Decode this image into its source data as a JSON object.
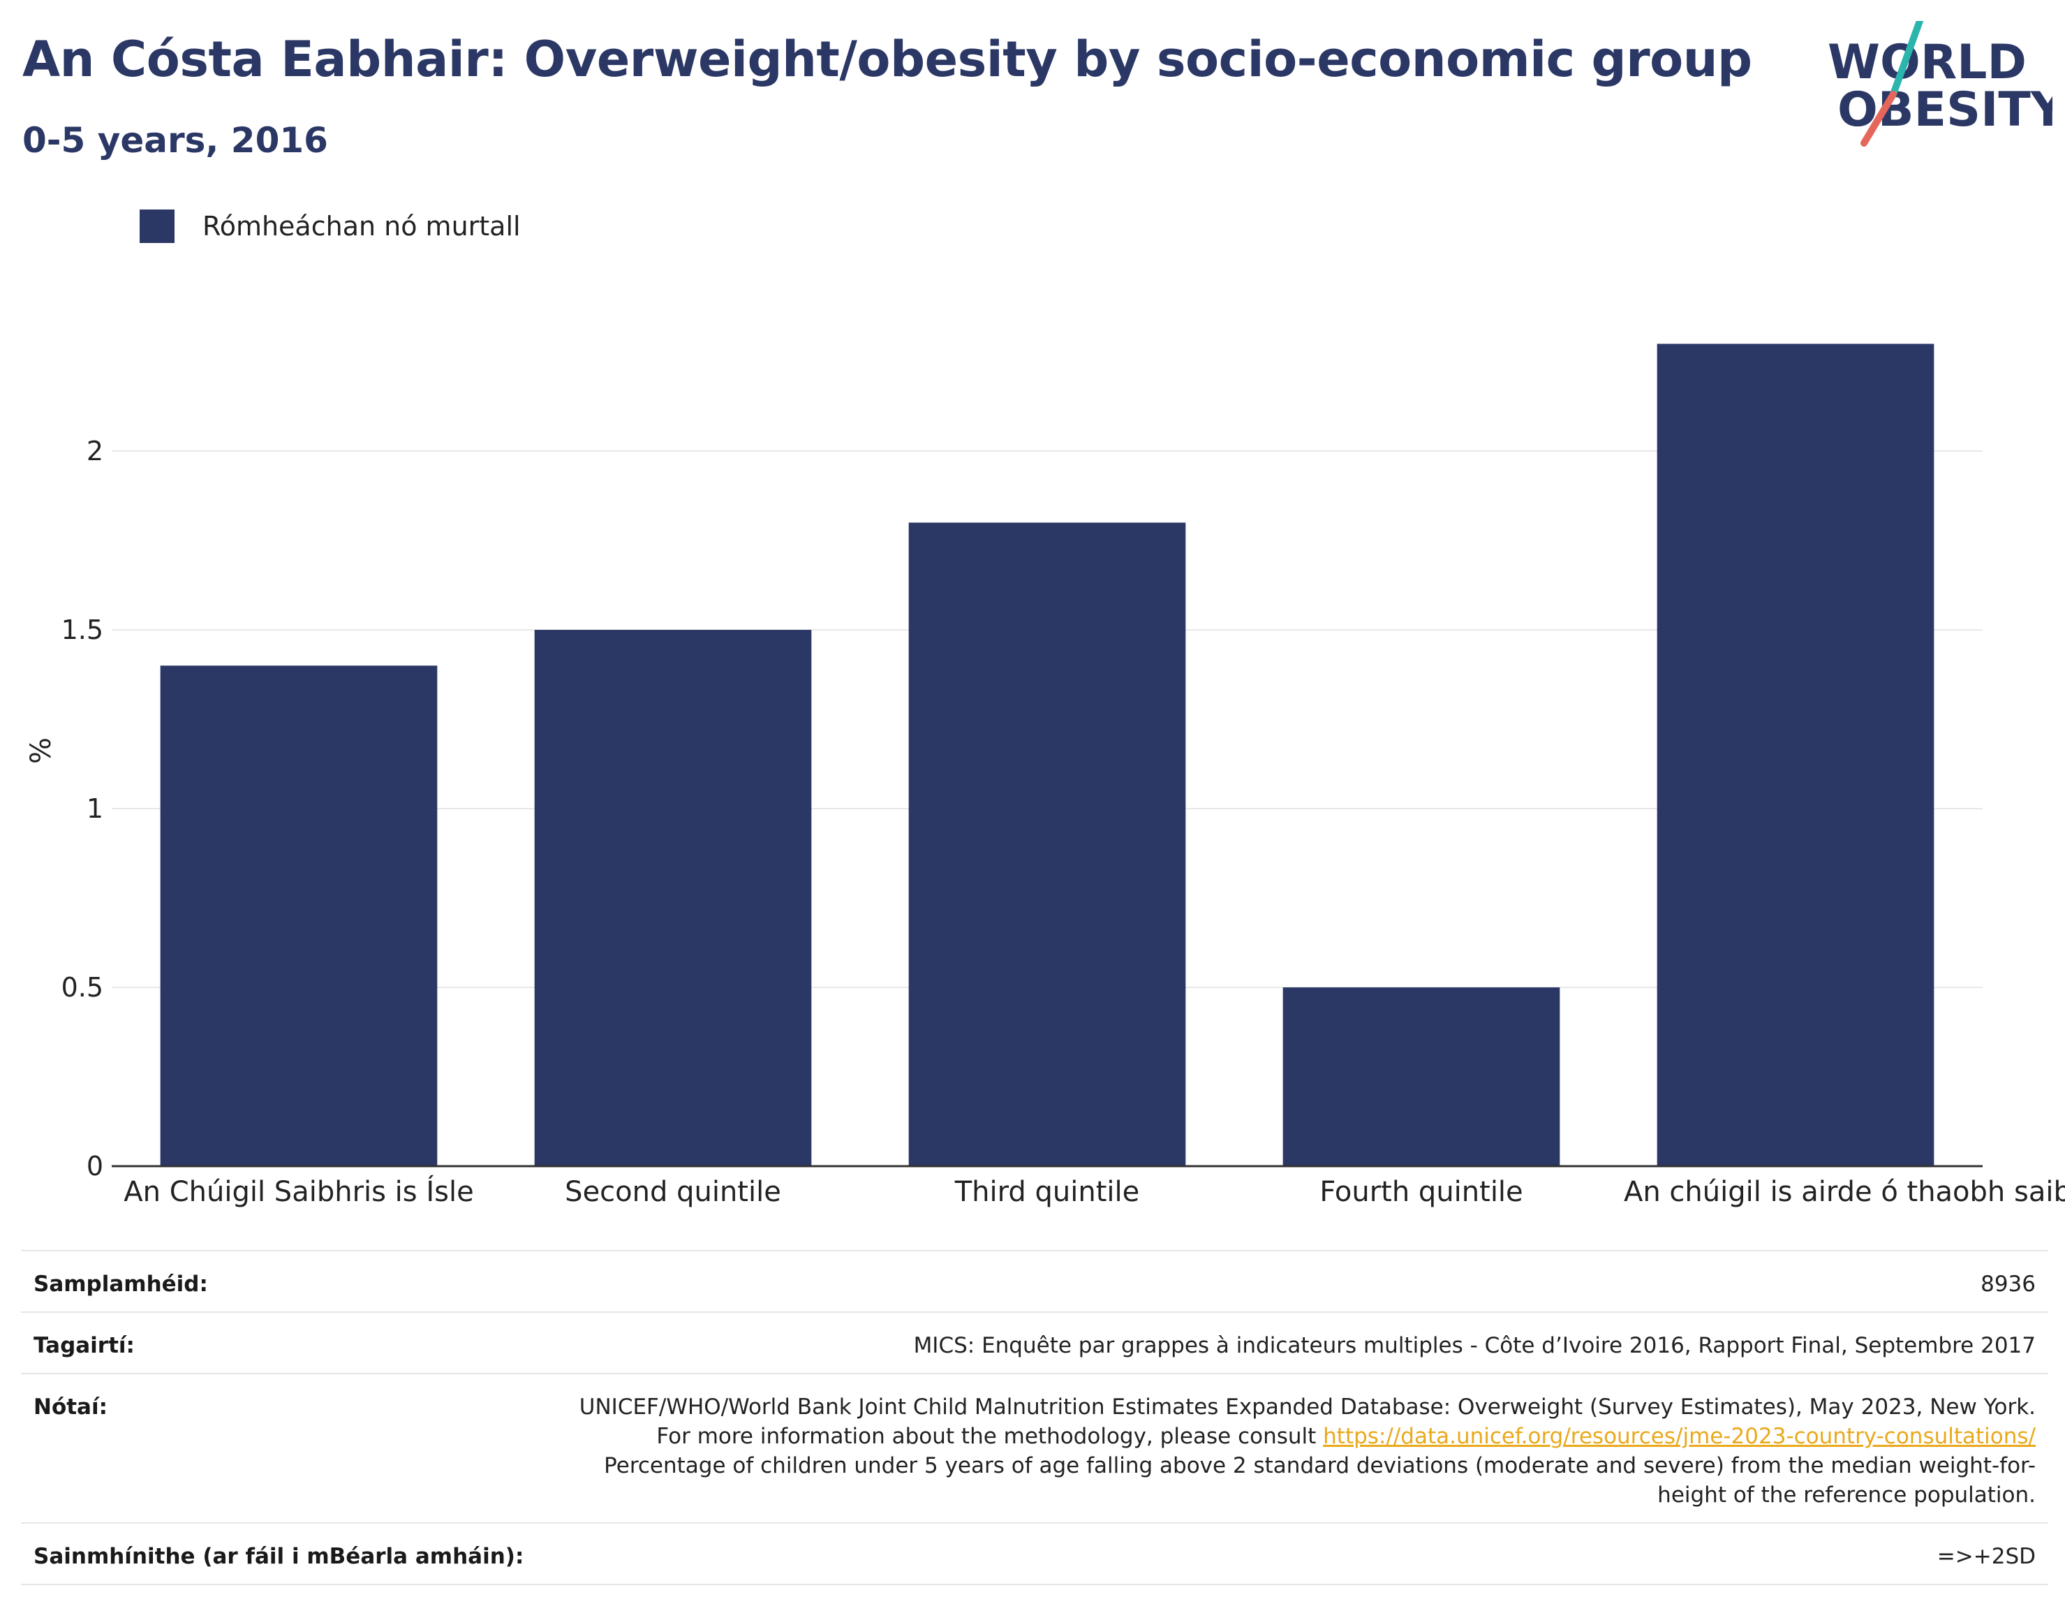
{
  "title": "An Cósta Eabhair: Overweight/obesity by socio-economic group",
  "subtitle": "0-5 years, 2016",
  "logo": {
    "line1": "WORLD",
    "line2": "OBESITY"
  },
  "legend": {
    "label": "Rómheáchan nó murtall",
    "color": "#2b3765"
  },
  "chart_data": {
    "type": "bar",
    "categories": [
      "An Chúigil Saibhris is Ísle",
      "Second quintile",
      "Third quintile",
      "Fourth quintile",
      "An chúigil is airde ó thaobh saibhris de"
    ],
    "series": [
      {
        "name": "Rómheáchan nó murtall",
        "values": [
          1.4,
          1.5,
          1.8,
          0.5,
          2.3
        ]
      }
    ],
    "ylabel": "%",
    "ylim": [
      0,
      2.5
    ],
    "yticks": [
      0,
      0.5,
      1,
      1.5,
      2
    ],
    "ytick_labels": [
      "0",
      "0.5",
      "1",
      "1.5",
      "2"
    ],
    "grid": true,
    "bar_color": "#2b3765"
  },
  "meta": {
    "sample_label": "Samplamhéid:",
    "sample_value": "8936",
    "refs_label": "Tagairtí:",
    "refs_value": "MICS: Enquête par grappes à indicateurs multiples - Côte d’Ivoire 2016, Rapport Final, Septembre 2017",
    "notes_label": "Nótaí:",
    "notes_line1": "UNICEF/WHO/World Bank Joint Child Malnutrition Estimates Expanded Database: Overweight (Survey Estimates), May 2023, New York. For more information about the methodology, please consult ",
    "notes_link": "https://data.unicef.org/resources/jme-2023-country-consultations/",
    "notes_line2": "Percentage of children under 5 years of age falling above 2 standard deviations (moderate and severe) from the median weight-for-height of the reference population.",
    "defs_label": "Sainmhínithe (ar fáil i mBéarla amháin):",
    "defs_value": "=>+2SD"
  }
}
